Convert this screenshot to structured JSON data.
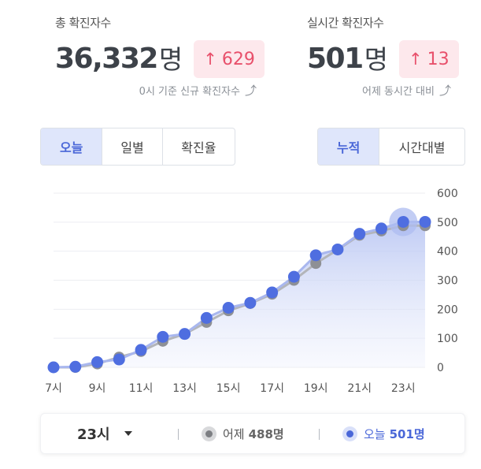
{
  "total": {
    "label": "총 확진자수",
    "value": "36,332",
    "unit": "명",
    "delta": "629",
    "sub": "0시 기준 신규 확진자수"
  },
  "realtime": {
    "label": "실시간 확진자수",
    "value": "501",
    "unit": "명",
    "delta": "13",
    "sub": "어제 동시간 대비"
  },
  "view_tabs": [
    {
      "label": "오늘",
      "active": true
    },
    {
      "label": "일별",
      "active": false
    },
    {
      "label": "확진율",
      "active": false
    }
  ],
  "mode_tabs": [
    {
      "label": "누적",
      "active": true
    },
    {
      "label": "시간대별",
      "active": false
    }
  ],
  "colors": {
    "accent": "#4a67d8",
    "today_point": "#4a67d8",
    "yesterday_point": "#8e9095",
    "delta_bg": "#fde8ec",
    "delta_text": "#e8506b"
  },
  "chart_data": {
    "type": "line",
    "x": [
      7,
      8,
      9,
      10,
      11,
      12,
      13,
      14,
      15,
      16,
      17,
      18,
      19,
      20,
      21,
      22,
      23,
      24
    ],
    "x_tick_labels": [
      "7시",
      "9시",
      "11시",
      "13시",
      "15시",
      "17시",
      "19시",
      "21시",
      "23시"
    ],
    "x_tick_values": [
      7,
      9,
      11,
      13,
      15,
      17,
      19,
      21,
      23
    ],
    "ylim": [
      0,
      600
    ],
    "y_ticks": [
      0,
      100,
      200,
      300,
      400,
      500,
      600
    ],
    "y_axis_side": "right",
    "grid": true,
    "highlight_x": 23,
    "series": [
      {
        "name": "어제",
        "values": [
          0,
          0,
          12,
          35,
          55,
          90,
          115,
          155,
          195,
          220,
          252,
          300,
          358,
          405,
          455,
          470,
          488,
          488
        ]
      },
      {
        "name": "오늘",
        "values": [
          0,
          2,
          18,
          27,
          60,
          105,
          115,
          170,
          205,
          222,
          258,
          312,
          386,
          406,
          460,
          478,
          501,
          501
        ]
      }
    ]
  },
  "footer": {
    "hour": "23시",
    "yesterday_label": "어제",
    "yesterday_value": "488명",
    "today_label": "오늘",
    "today_value": "501명"
  }
}
